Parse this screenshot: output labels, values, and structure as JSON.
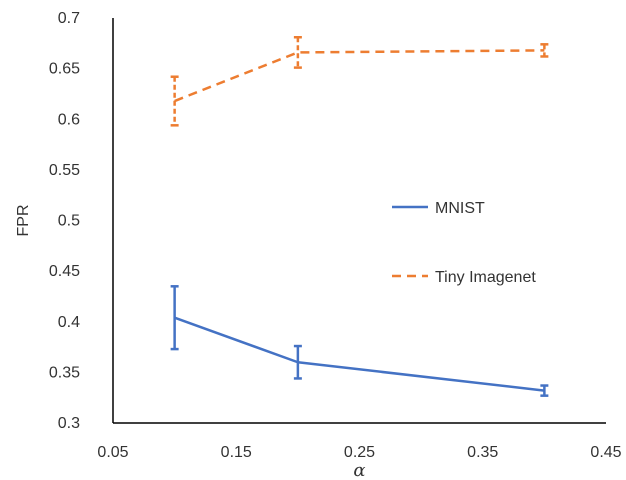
{
  "chart_data": {
    "type": "line",
    "title": "",
    "xlabel": "α",
    "ylabel": "FPR",
    "xlim": [
      0.05,
      0.45
    ],
    "ylim": [
      0.3,
      0.7
    ],
    "xticks": [
      "0.05",
      "0.15",
      "0.25",
      "0.35",
      "0.45"
    ],
    "yticks": [
      "0.3",
      "0.35",
      "0.4",
      "0.45",
      "0.5",
      "0.55",
      "0.6",
      "0.65",
      "0.7"
    ],
    "grid": false,
    "legend_position": "right",
    "series": [
      {
        "name": "MNIST",
        "style": "solid",
        "color": "#4472C4",
        "x": [
          0.1,
          0.2,
          0.4
        ],
        "y": [
          0.404,
          0.36,
          0.332
        ],
        "error": [
          0.031,
          0.016,
          0.005
        ]
      },
      {
        "name": "Tiny Imagenet",
        "style": "dashed",
        "color": "#ED7D31",
        "x": [
          0.1,
          0.2,
          0.4
        ],
        "y": [
          0.618,
          0.666,
          0.668
        ],
        "error": [
          0.024,
          0.015,
          0.006
        ]
      }
    ]
  }
}
